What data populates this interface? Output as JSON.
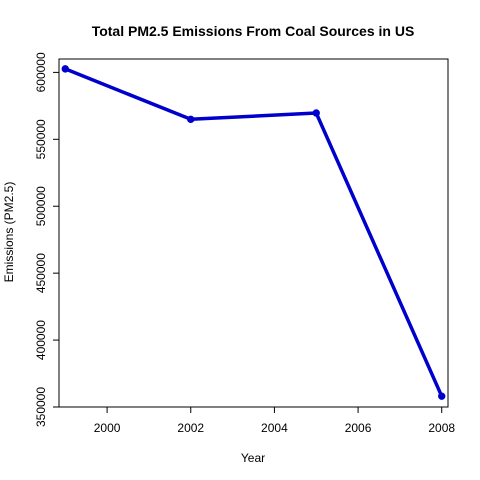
{
  "chart_data": {
    "type": "line",
    "title": "Total PM2.5 Emissions From Coal Sources in US",
    "xlabel": "Year",
    "ylabel": "Emissions (PM2.5)",
    "x": [
      1999,
      2002,
      2005,
      2008
    ],
    "series": [
      {
        "name": "Total PM2.5 Emissions",
        "values": [
          602624,
          564936,
          569654,
          358084
        ],
        "color": "#0000CD"
      }
    ],
    "xlim": [
      1998.85,
      2008.15
    ],
    "ylim": [
      350000,
      610000
    ],
    "xticks": [
      2000,
      2002,
      2004,
      2006,
      2008
    ],
    "xtick_labels": [
      "2000",
      "2002",
      "2004",
      "2006",
      "2008"
    ],
    "yticks": [
      350000,
      400000,
      450000,
      500000,
      550000,
      600000
    ],
    "ytick_labels": [
      "350000",
      "400000",
      "450000",
      "500000",
      "550000",
      "600000"
    ],
    "grid": false,
    "legend": "none"
  }
}
